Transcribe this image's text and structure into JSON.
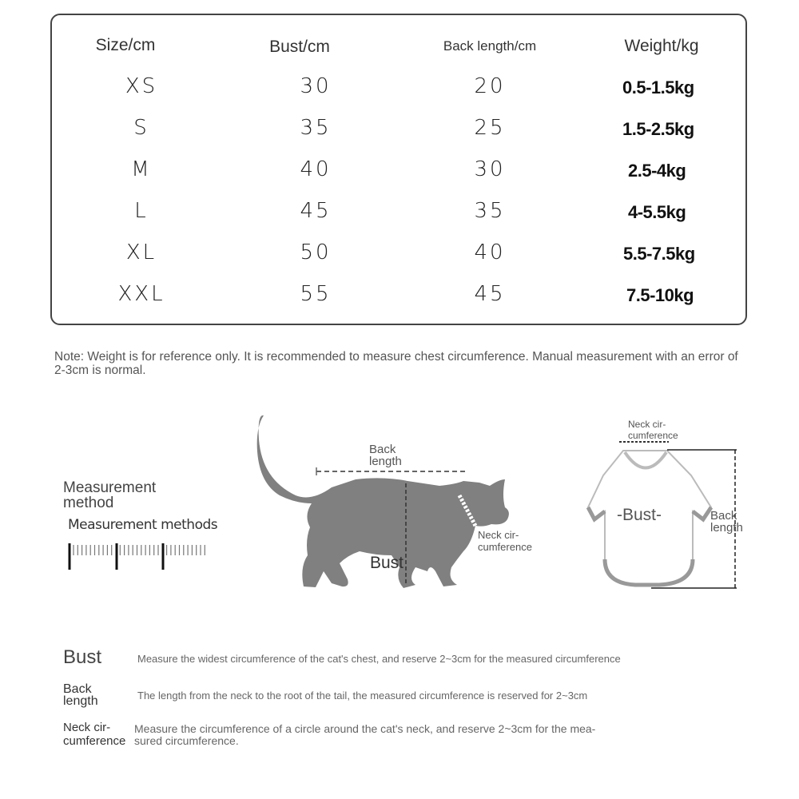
{
  "table": {
    "headers": [
      "Size/cm",
      "Bust/cm",
      "Back length/cm",
      "Weight/kg"
    ],
    "rows": [
      [
        "XS",
        "30",
        "20",
        "0.5-1.5kg"
      ],
      [
        "S",
        "35",
        "25",
        "1.5-2.5kg"
      ],
      [
        "M",
        "40",
        "30",
        "2.5-4kg"
      ],
      [
        "L",
        "45",
        "35",
        "4-5.5kg"
      ],
      [
        "XL",
        "50",
        "40",
        "5.5-7.5kg"
      ],
      [
        "XXL",
        "55",
        "45",
        "7.5-10kg"
      ]
    ]
  },
  "note": "Note: Weight is for reference only. It is recommended to measure chest circumference. Manual measurement with an error of 2-3cm is normal.",
  "method": {
    "title_line1": "Measurement",
    "title_line2": "method",
    "subtitle": "Measurement methods"
  },
  "cat_diagram": {
    "back_length_1": "Back",
    "back_length_2": "length",
    "bust": "Bust",
    "neck_1": "Neck cir-",
    "neck_2": "cumference",
    "color": "#808080"
  },
  "shirt_diagram": {
    "neck_1": "Neck cir-",
    "neck_2": "cumference",
    "bust": "-Bust-",
    "back_1": "Back",
    "back_2": "length"
  },
  "definitions": [
    {
      "term": "Bust",
      "desc": "Measure the widest circumference of the cat's chest, and reserve 2~3cm for the measured circumference"
    },
    {
      "term_1": "Back",
      "term_2": "length",
      "desc": "The length from the neck to the root of the tail, the measured circumference is reserved for 2~3cm"
    },
    {
      "term_1": "Neck cir-",
      "term_2": "cumference",
      "desc_1": "Measure the circumference of a circle around the cat's neck, and reserve 2~3cm for the mea-",
      "desc_2": "sured circumference."
    }
  ]
}
